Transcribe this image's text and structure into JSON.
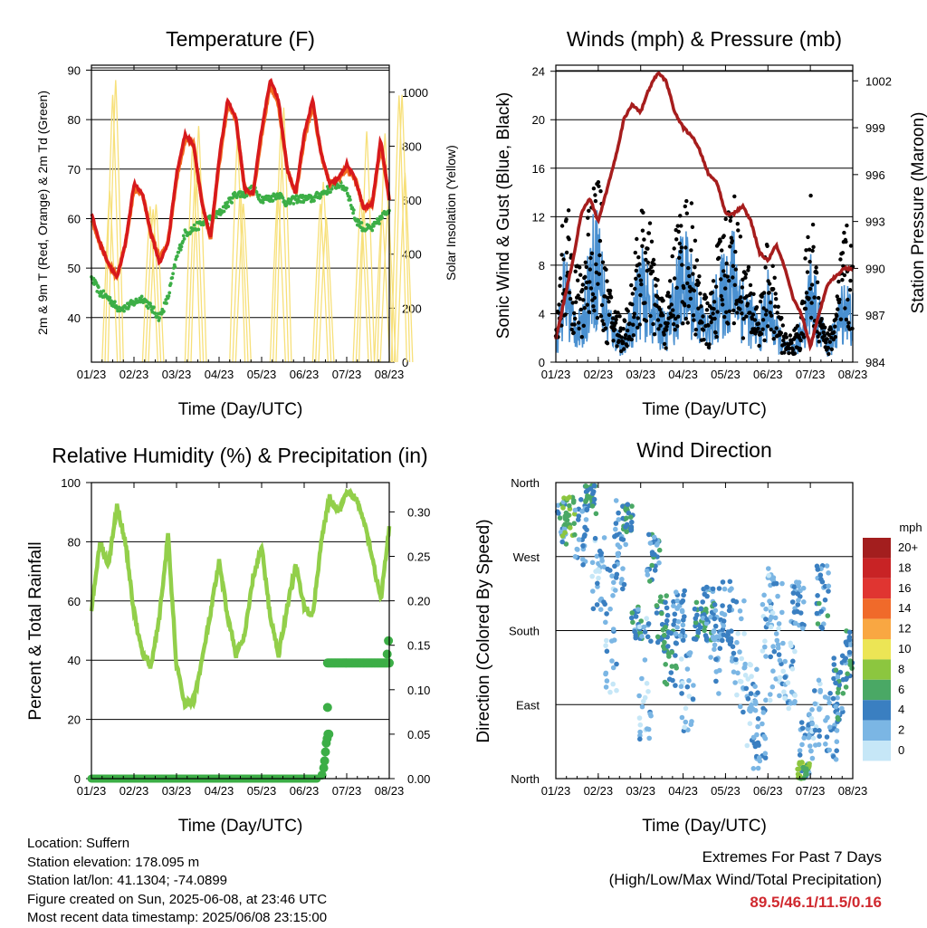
{
  "colors": {
    "temp2m": "#d7191c",
    "temp9m": "#f26c21",
    "dewpoint": "#3cae46",
    "solar": "#f7e07a",
    "gust": "#000000",
    "wind": "#4a90d0",
    "pressure": "#a61d1d",
    "rh": "#92cf4a",
    "precip": "#3cae46",
    "extremes": "#d0292f"
  },
  "panels": {
    "temperature": {
      "title": "Temperature (F)",
      "xlabel": "Time (Day/UTC)",
      "ylabel_left": "2m & 9m T (Red, Orange) & 2m Td (Green)",
      "ylabel_right": "Solar Insolation (Yellow)"
    },
    "winds": {
      "title": "Winds (mph) & Pressure (mb)",
      "xlabel": "Time (Day/UTC)",
      "ylabel_left": "Sonic Wind & Gust (Blue, Black)",
      "ylabel_right": "Station Pressure (Maroon)"
    },
    "humidity": {
      "title": "Relative Humidity (%) & Precipitation (in)",
      "xlabel": "Time (Day/UTC)",
      "ylabel_left": "Percent & Total Rainfall"
    },
    "direction": {
      "title": "Wind Direction",
      "xlabel": "Time (Day/UTC)",
      "ylabel_left": "Direction (Colored By Speed)"
    }
  },
  "chart_data": [
    {
      "type": "line",
      "title": "Temperature (F)",
      "xlabel": "Time (Day/UTC)",
      "ylabel": "2m & 9m T (Red, Orange) & 2m Td (Green)",
      "y2label": "Solar Insolation (Yellow)",
      "x_ticks": [
        "01/23",
        "02/23",
        "03/23",
        "04/23",
        "05/23",
        "06/23",
        "07/23",
        "08/23"
      ],
      "ylim": [
        31,
        91
      ],
      "y_ticks": [
        40,
        50,
        60,
        70,
        80,
        90
      ],
      "y2lim": [
        0,
        1100
      ],
      "y2_ticks": [
        0,
        200,
        400,
        600,
        800,
        1000
      ],
      "x": [
        1,
        1.2,
        1.4,
        1.6,
        1.8,
        2,
        2.2,
        2.4,
        2.6,
        2.8,
        3,
        3.2,
        3.4,
        3.6,
        3.8,
        4,
        4.2,
        4.4,
        4.6,
        4.8,
        5,
        5.2,
        5.4,
        5.6,
        5.8,
        6,
        6.2,
        6.4,
        6.6,
        6.8,
        7,
        7.2,
        7.4,
        7.6,
        7.8,
        8
      ],
      "series": [
        {
          "name": "2m T",
          "color": "#d7191c",
          "values": [
            61,
            55,
            51,
            48,
            55,
            67,
            65,
            57,
            51,
            55,
            69,
            77,
            75,
            63,
            56,
            72,
            84,
            80,
            66,
            65,
            78,
            88,
            84,
            70,
            65,
            77,
            84,
            73,
            67,
            68,
            71,
            68,
            62,
            63,
            76,
            64
          ]
        },
        {
          "name": "9m T",
          "color": "#f26c21",
          "values": [
            60,
            55,
            51,
            48,
            55,
            66,
            65,
            57,
            52,
            55,
            68,
            76,
            75,
            63,
            56,
            71,
            83,
            80,
            66,
            65,
            77,
            87,
            83,
            70,
            65,
            76,
            83,
            73,
            67,
            68,
            70,
            68,
            62,
            63,
            75,
            64
          ]
        },
        {
          "name": "2m Td",
          "color": "#3cae46",
          "values": [
            48,
            45,
            44,
            42,
            42,
            43,
            44,
            42,
            40,
            44,
            52,
            57,
            58,
            59,
            60,
            61,
            63,
            65,
            65,
            66,
            64,
            64,
            65,
            63,
            64,
            64,
            64,
            65,
            66,
            67,
            66,
            60,
            58,
            58,
            60,
            62
          ]
        },
        {
          "name": "Solar Insolation",
          "color": "#f7e07a",
          "axis": "right",
          "day_peaks": [
            1070,
            1020,
            910,
            920,
            950,
            950,
            910,
            880,
            1020
          ],
          "peak_x": [
            1.5,
            2.45,
            3.45,
            4.5,
            5.45,
            6.45,
            7.4,
            7.9,
            8.3
          ]
        }
      ]
    },
    {
      "type": "line",
      "title": "Winds (mph) & Pressure (mb)",
      "xlabel": "Time (Day/UTC)",
      "ylabel": "Sonic Wind & Gust (Blue, Black)",
      "y2label": "Station Pressure (Maroon)",
      "x_ticks": [
        "01/23",
        "02/23",
        "03/23",
        "04/23",
        "05/23",
        "06/23",
        "07/23",
        "08/23"
      ],
      "ylim": [
        0,
        24.5
      ],
      "y_ticks": [
        0,
        4,
        8,
        12,
        16,
        20,
        24
      ],
      "y2lim": [
        984,
        1003
      ],
      "y2_ticks": [
        984,
        987,
        990,
        993,
        996,
        999,
        1002
      ],
      "x": [
        1,
        1.2,
        1.4,
        1.6,
        1.8,
        2,
        2.2,
        2.4,
        2.6,
        2.8,
        3,
        3.2,
        3.4,
        3.6,
        3.8,
        4,
        4.2,
        4.4,
        4.6,
        4.8,
        5,
        5.2,
        5.4,
        5.6,
        5.8,
        6,
        6.2,
        6.4,
        6.6,
        6.8,
        7,
        7.2,
        7.4,
        7.6,
        7.8,
        8
      ],
      "series": [
        {
          "name": "Wind",
          "color": "#4a90d0",
          "values": [
            1,
            5,
            3,
            2,
            6,
            7,
            3,
            2,
            1,
            3,
            5,
            4,
            3,
            2,
            4,
            6,
            5,
            3,
            2,
            4,
            5,
            6,
            4,
            3,
            2,
            4,
            2,
            1,
            1,
            2,
            5,
            3,
            1,
            2,
            4,
            3
          ]
        },
        {
          "name": "Gust",
          "color": "#000000",
          "values": [
            2,
            12,
            9,
            6,
            13,
            14,
            6,
            4,
            3,
            6,
            11,
            10,
            6,
            4,
            9,
            12,
            11,
            6,
            4,
            8,
            11,
            12,
            8,
            6,
            4,
            9,
            5,
            2,
            2,
            4,
            12,
            6,
            2,
            4,
            10,
            8
          ]
        },
        {
          "name": "Pressure",
          "color": "#a61d1d",
          "axis": "right",
          "values": [
            985.5,
            988,
            990.5,
            993.5,
            994.5,
            993,
            995,
            997,
            999.5,
            1000.5,
            1000,
            1001.5,
            1002.5,
            1002,
            1000,
            999,
            998.5,
            997.5,
            996,
            995.5,
            993.5,
            993.5,
            994,
            993,
            991,
            990.5,
            991.5,
            990,
            988,
            987,
            985,
            987,
            989,
            989.5,
            990,
            990
          ]
        }
      ]
    },
    {
      "type": "line",
      "title": "Relative Humidity (%) & Precipitation (in)",
      "xlabel": "Time (Day/UTC)",
      "ylabel": "Percent & Total Rainfall",
      "x_ticks": [
        "01/23",
        "02/23",
        "03/23",
        "04/23",
        "05/23",
        "06/23",
        "07/23",
        "08/23"
      ],
      "ylim": [
        0,
        100
      ],
      "y_ticks": [
        0,
        20,
        40,
        60,
        80,
        100
      ],
      "y2lim": [
        0,
        0.333
      ],
      "y2_ticks": [
        "0.00",
        "0.05",
        "0.10",
        "0.15",
        "0.20",
        "0.25",
        "0.30"
      ],
      "x": [
        1,
        1.2,
        1.4,
        1.6,
        1.8,
        2,
        2.2,
        2.4,
        2.6,
        2.8,
        3,
        3.2,
        3.4,
        3.6,
        3.8,
        4,
        4.2,
        4.4,
        4.6,
        4.8,
        5,
        5.2,
        5.4,
        5.6,
        5.8,
        6,
        6.2,
        6.4,
        6.6,
        6.8,
        7,
        7.2,
        7.4,
        7.6,
        7.8,
        8
      ],
      "series": [
        {
          "name": "Relative Humidity",
          "color": "#92cf4a",
          "values": [
            57,
            80,
            72,
            92,
            80,
            56,
            42,
            38,
            55,
            82,
            38,
            25,
            26,
            40,
            56,
            73,
            55,
            42,
            48,
            68,
            78,
            55,
            42,
            58,
            72,
            58,
            55,
            80,
            95,
            90,
            96,
            95,
            88,
            75,
            60,
            85
          ]
        },
        {
          "name": "Total Precipitation",
          "color": "#3cae46",
          "axis": "right",
          "x": [
            1,
            6.2,
            6.4,
            6.5,
            6.55,
            6.6,
            6.65,
            6.7,
            6.75,
            8
          ],
          "values": [
            0,
            0,
            0,
            0.01,
            0.04,
            0.05,
            0.08,
            0.13,
            0.13,
            0.13
          ],
          "end_values": [
            0.14,
            0.155
          ]
        }
      ]
    },
    {
      "type": "scatter",
      "title": "Wind Direction",
      "xlabel": "Time (Day/UTC)",
      "ylabel": "Direction (Colored By Speed)",
      "x_ticks": [
        "01/23",
        "02/23",
        "03/23",
        "04/23",
        "05/23",
        "06/23",
        "07/23",
        "08/23"
      ],
      "y_ticks": [
        "North",
        "East",
        "South",
        "West",
        "North"
      ],
      "ylim": [
        0,
        360
      ],
      "colorbar": {
        "unit": "mph",
        "labels": [
          "20+",
          "18",
          "16",
          "14",
          "12",
          "10",
          "8",
          "6",
          "4",
          "2",
          "0"
        ],
        "colors": [
          "#a31e1e",
          "#c82325",
          "#e03531",
          "#f06a2a",
          "#f9a742",
          "#ece555",
          "#8cc63f",
          "#4aa865",
          "#3a7fc1",
          "#7bb6e4",
          "#c6e7f7"
        ]
      }
    }
  ],
  "footer": {
    "location": "Location: Suffern",
    "elevation": "Station elevation: 178.095 m",
    "latlon": "Station lat/lon: 41.1304; -74.0899",
    "created": "Figure created on Sun, 2025-06-08, at 23:46 UTC",
    "recent": "Most recent data timestamp: 2025/06/08 23:15:00"
  },
  "extremes": {
    "title": "Extremes For Past 7 Days",
    "subtitle": "(High/Low/Max Wind/Total Precipitation)",
    "values": "89.5/46.1/11.5/0.16"
  }
}
